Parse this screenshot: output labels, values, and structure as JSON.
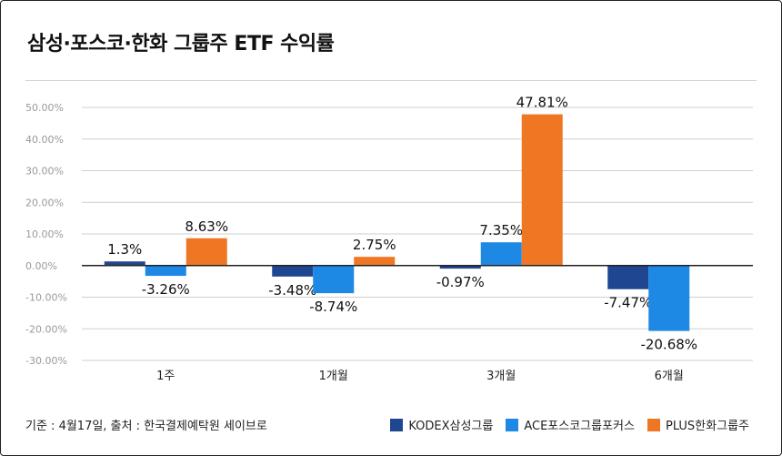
{
  "title": "삼성·포스코·한화 그룹주 ETF 수익률",
  "source": "기준 : 4월17일, 출처 : 한국결제예탁원 세이브로",
  "colors": {
    "series": [
      "#1f4690",
      "#1e88e5",
      "#ef7622"
    ],
    "grid": "#cfcfcf",
    "zero_line": "#222222",
    "tick_text": "#9a9a9a"
  },
  "chart_data": {
    "type": "bar",
    "categories": [
      "1주",
      "1개월",
      "3개월",
      "6개월"
    ],
    "series": [
      {
        "name": "KODEX삼성그룹",
        "values": [
          1.3,
          -3.48,
          -0.97,
          -7.47
        ],
        "labels": [
          "1.3%",
          "-3.48%",
          "-0.97%",
          "-7.47%"
        ]
      },
      {
        "name": "ACE포스코그룹포커스",
        "values": [
          -3.26,
          -8.74,
          7.35,
          -20.68
        ],
        "labels": [
          "-3.26%",
          "-8.74%",
          "7.35%",
          "-20.68%"
        ]
      },
      {
        "name": "PLUS한화그룹주",
        "values": [
          8.63,
          2.75,
          47.81,
          null
        ],
        "labels": [
          "8.63%",
          "2.75%",
          "47.81%",
          ""
        ]
      }
    ],
    "ylim": [
      -30,
      50
    ],
    "yticks": [
      50,
      40,
      30,
      20,
      10,
      0,
      -10,
      -20,
      -30
    ],
    "ytick_labels": [
      "50.00%",
      "40.00%",
      "30.00%",
      "20.00%",
      "10.00%",
      "0.00%",
      "-10.00%",
      "-20.00%",
      "-30.00%"
    ],
    "grid": true,
    "legend": "bottom-right"
  }
}
